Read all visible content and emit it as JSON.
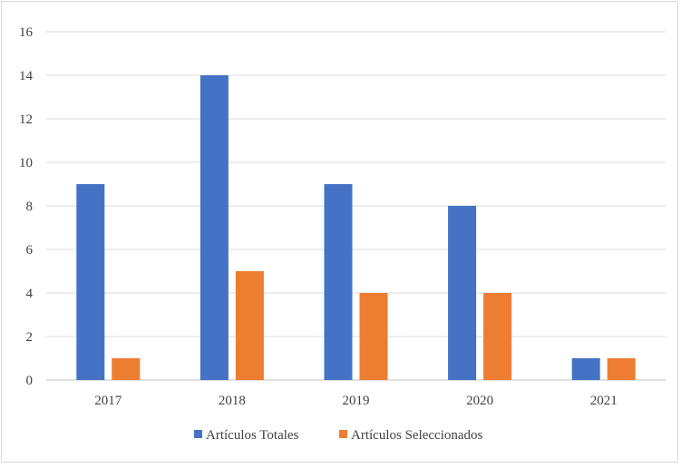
{
  "chart_data": {
    "type": "bar",
    "categories": [
      "2017",
      "2018",
      "2019",
      "2020",
      "2021"
    ],
    "series": [
      {
        "name": "Artículos Totales",
        "values": [
          9,
          14,
          9,
          8,
          1
        ],
        "color": "#4472c4"
      },
      {
        "name": "Artículos Seleccionados",
        "values": [
          1,
          5,
          4,
          4,
          1
        ],
        "color": "#ed7d31"
      }
    ],
    "ylim": [
      0,
      16
    ],
    "yticks": [
      0,
      2,
      4,
      6,
      8,
      10,
      12,
      14,
      16
    ],
    "grid": true,
    "legend_position": "bottom",
    "title": "",
    "xlabel": "",
    "ylabel": ""
  }
}
